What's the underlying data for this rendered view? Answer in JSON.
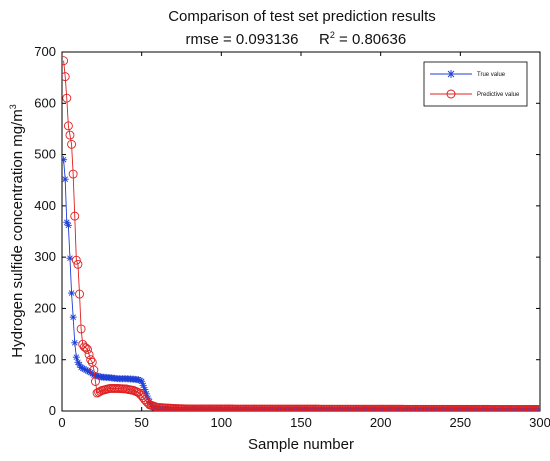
{
  "chart_data": {
    "type": "line",
    "title": "Comparison of test  set prediction results",
    "subtitle_rmse": "rmse = 0.093136",
    "subtitle_r2_label": "R",
    "subtitle_r2_sup": "2",
    "subtitle_r2_value": " = 0.80636",
    "xlabel": "Sample number",
    "ylabel": "Hydrogen sulfide concentration mg/m",
    "ylabel_sup": "3",
    "xlim": [
      0,
      300
    ],
    "ylim": [
      0,
      700
    ],
    "xticks": [
      0,
      50,
      100,
      150,
      200,
      250,
      300
    ],
    "yticks": [
      0,
      100,
      200,
      300,
      400,
      500,
      600,
      700
    ],
    "grid": false,
    "legend_position": "top-right",
    "series": [
      {
        "name": "True value",
        "color": "#1f3fd6",
        "marker": "asterisk",
        "anchors": [
          [
            1,
            490
          ],
          [
            2,
            452
          ],
          [
            3,
            368
          ],
          [
            4,
            362
          ],
          [
            5,
            298
          ],
          [
            6,
            230
          ],
          [
            7,
            183
          ],
          [
            8,
            133
          ],
          [
            9,
            105
          ],
          [
            10,
            95
          ],
          [
            12,
            85
          ],
          [
            15,
            80
          ],
          [
            18,
            75
          ],
          [
            20,
            70
          ],
          [
            25,
            66
          ],
          [
            30,
            65
          ],
          [
            35,
            63
          ],
          [
            40,
            63
          ],
          [
            45,
            62
          ],
          [
            48,
            61
          ],
          [
            50,
            58
          ],
          [
            52,
            42
          ],
          [
            54,
            25
          ],
          [
            56,
            12
          ],
          [
            58,
            6
          ],
          [
            60,
            4
          ],
          [
            65,
            3
          ],
          [
            70,
            3
          ],
          [
            80,
            3
          ],
          [
            300,
            2
          ]
        ]
      },
      {
        "name": "Predictive value",
        "color": "#e02020",
        "marker": "circle",
        "anchors": [
          [
            1,
            683
          ],
          [
            2,
            652
          ],
          [
            3,
            610
          ],
          [
            4,
            556
          ],
          [
            6,
            520
          ],
          [
            7,
            462
          ],
          [
            8,
            380
          ],
          [
            9,
            294
          ],
          [
            10,
            286
          ],
          [
            11,
            228
          ],
          [
            12,
            160
          ],
          [
            13,
            130
          ],
          [
            14,
            125
          ],
          [
            15,
            123
          ],
          [
            16,
            120
          ],
          [
            18,
            100
          ],
          [
            19,
            95
          ],
          [
            20,
            80
          ],
          [
            22,
            35
          ],
          [
            25,
            40
          ],
          [
            30,
            44
          ],
          [
            35,
            44
          ],
          [
            40,
            43
          ],
          [
            45,
            40
          ],
          [
            48,
            36
          ],
          [
            50,
            30
          ],
          [
            52,
            22
          ],
          [
            55,
            12
          ],
          [
            60,
            7
          ],
          [
            65,
            6
          ],
          [
            70,
            5
          ],
          [
            80,
            4
          ],
          [
            300,
            3
          ]
        ]
      }
    ]
  }
}
